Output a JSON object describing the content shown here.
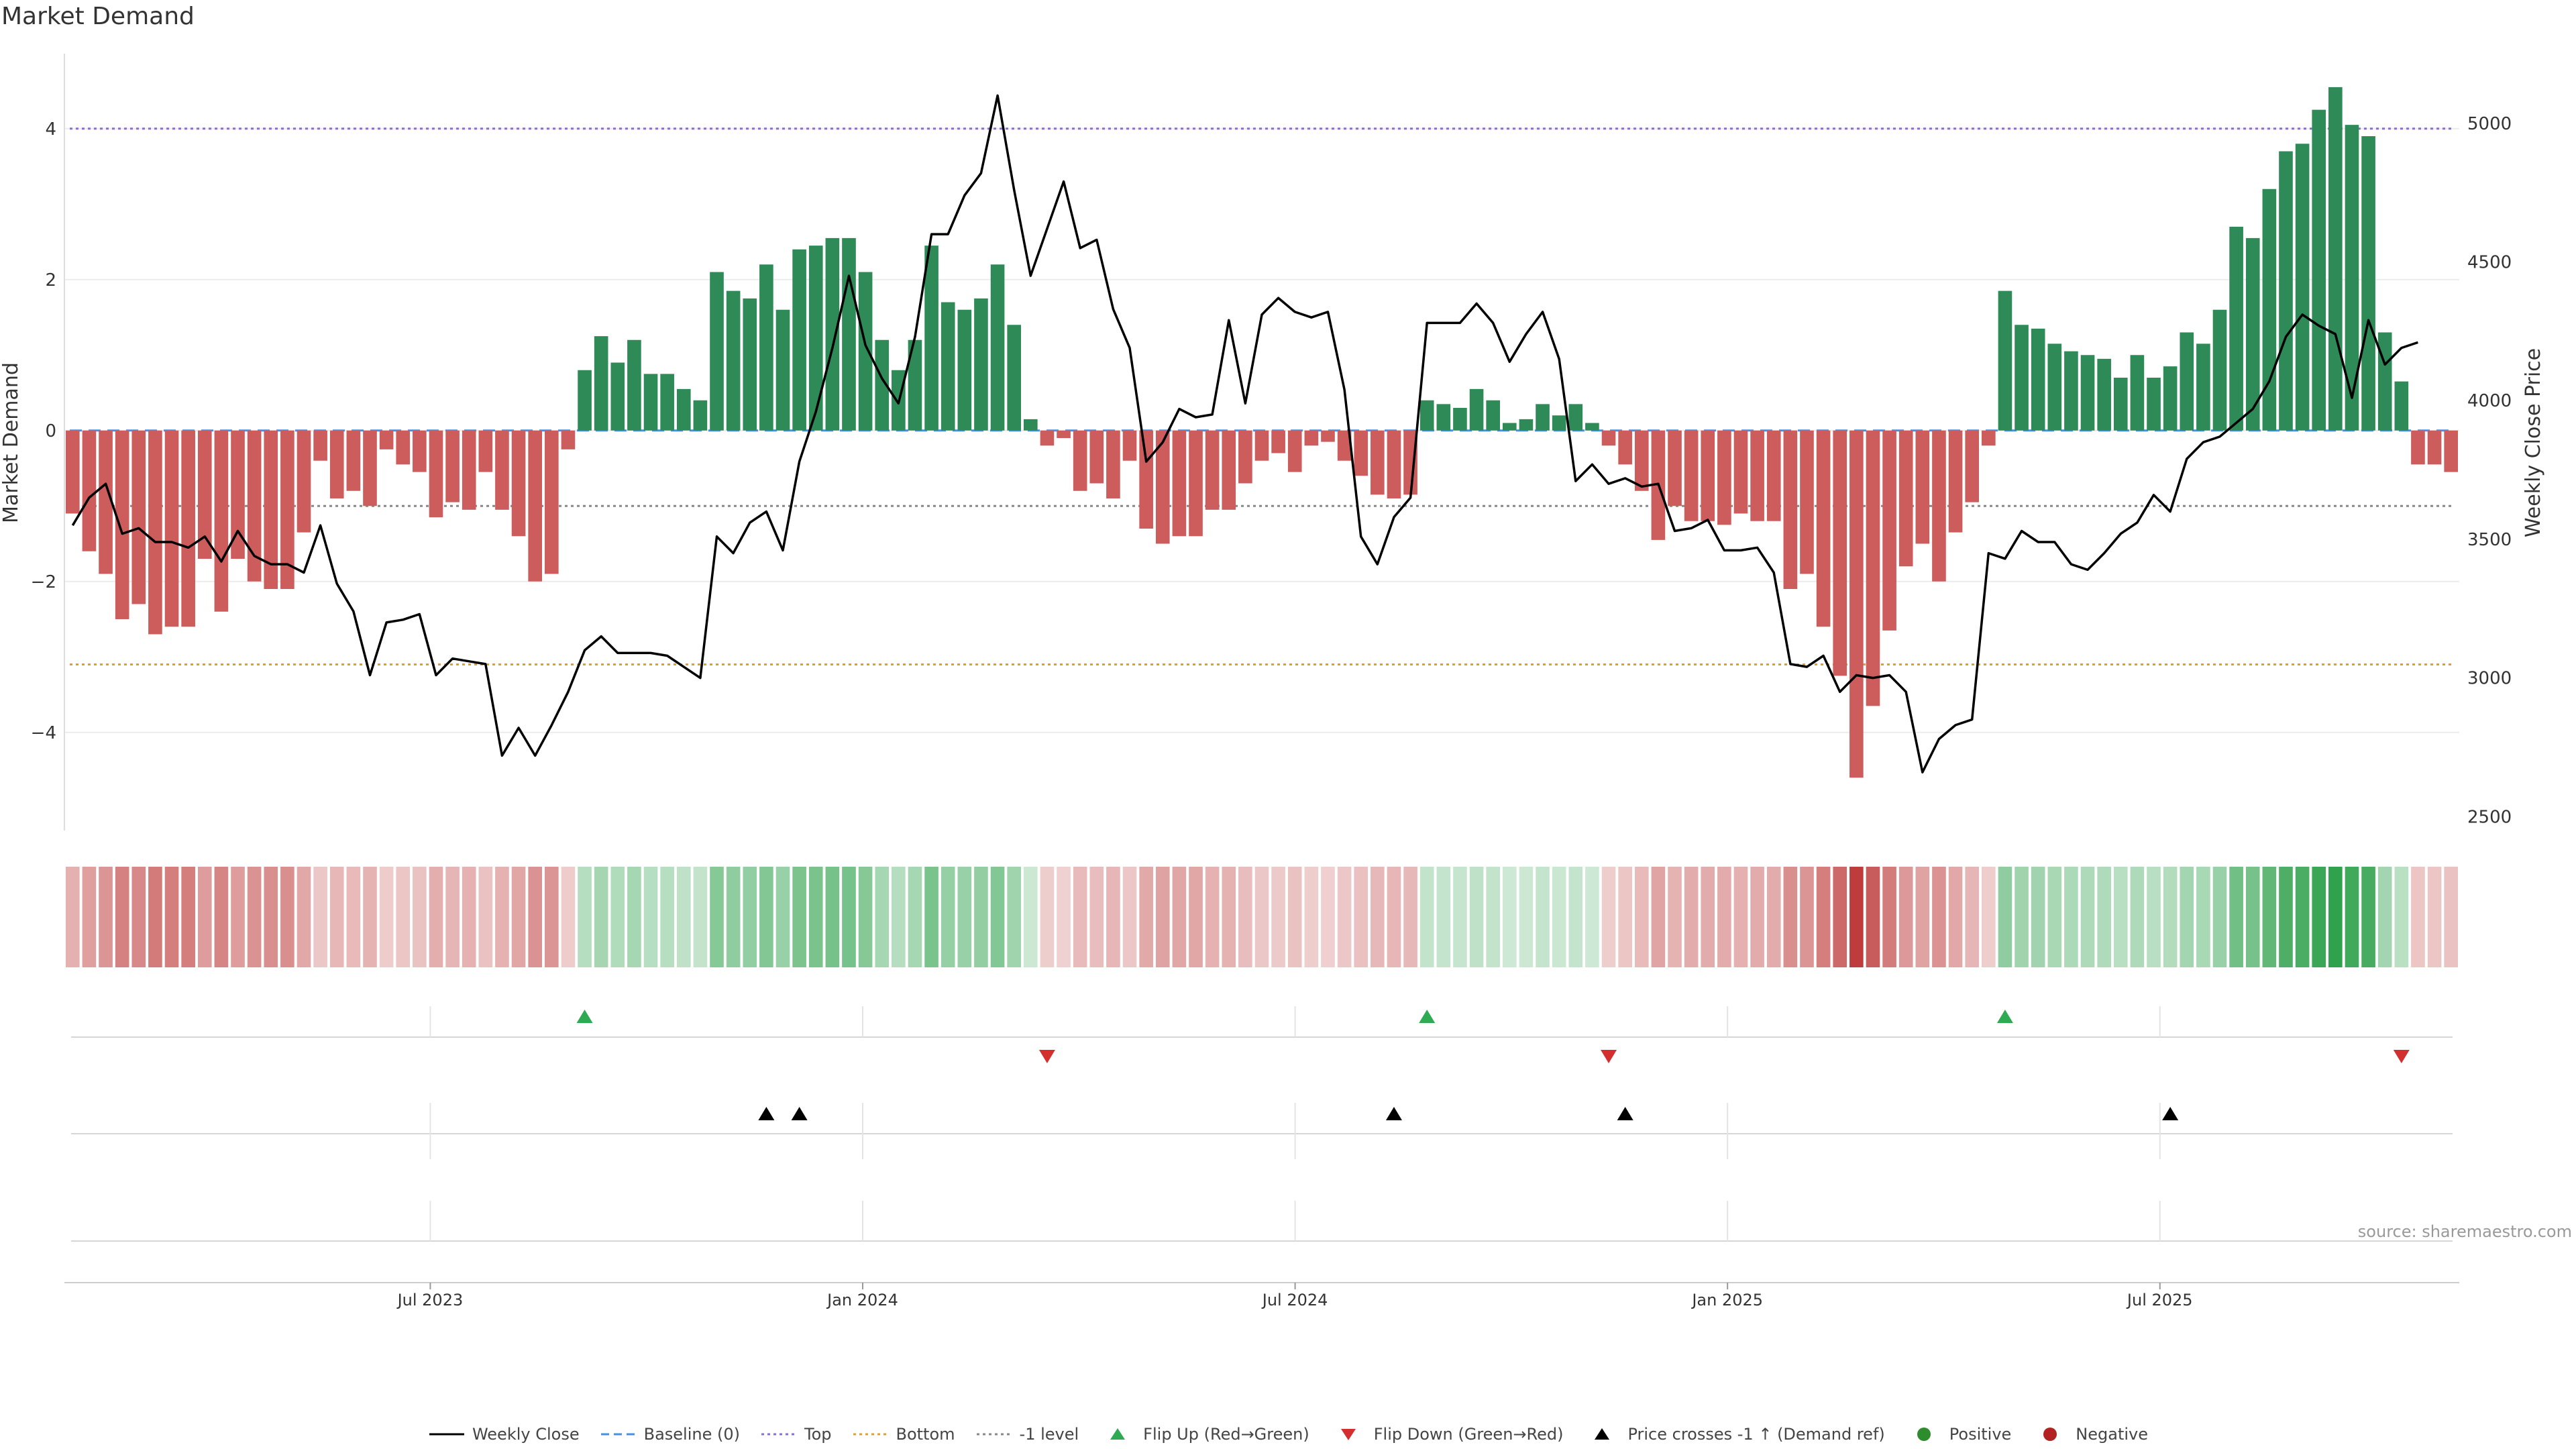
{
  "title": "Market Demand",
  "source": "source: sharemaestro.com",
  "colors": {
    "positive": "#2e8b57",
    "negative": "#cd5c5c",
    "price": "#000000",
    "top_line": "#8b6fd0",
    "bottom_line": "#e0a030",
    "minus1_line": "#888888",
    "baseline": "#4a90e2",
    "flip_up": "#2eaa52",
    "flip_down": "#d32f2f",
    "price_cross": "#000000",
    "grid": "#ececec"
  },
  "chart_data": {
    "type": "bar+line",
    "title": "Market Demand",
    "ylabel_left": "Market Demand",
    "ylabel_right": "Weekly Close Price",
    "ylim_left": [
      -5.3,
      5.1
    ],
    "yticks_left": [
      -4,
      -2,
      0,
      2,
      4
    ],
    "ytick_labels_left": [
      "−4",
      "−2",
      "0",
      "2",
      "4"
    ],
    "ylim_right": [
      2450,
      5280
    ],
    "yticks_right": [
      2500,
      3000,
      3500,
      4000,
      4500,
      5000
    ],
    "ytick_labels_right": [
      "2500",
      "3000",
      "3500",
      "4000",
      "4500",
      "5000"
    ],
    "reference_lines": {
      "top": 4.0,
      "bottom": -3.1,
      "minus_one": -1.0,
      "baseline": 0
    },
    "xlim_weeks": [
      0,
      144
    ],
    "x_ticks": [
      {
        "label": "Jul 2023",
        "week": 22
      },
      {
        "label": "Jan 2024",
        "week": 48
      },
      {
        "label": "Jul 2024",
        "week": 74
      },
      {
        "label": "Jan 2025",
        "week": 100
      },
      {
        "label": "Jul 2025",
        "week": 126
      }
    ],
    "demand": [
      -1.1,
      -1.6,
      -1.9,
      -2.5,
      -2.3,
      -2.7,
      -2.6,
      -2.6,
      -1.7,
      -2.4,
      -1.7,
      -2.0,
      -2.1,
      -2.1,
      -1.35,
      -0.4,
      -0.9,
      -0.8,
      -1.0,
      -0.25,
      -0.45,
      -0.55,
      -1.15,
      -0.95,
      -1.05,
      -0.55,
      -1.05,
      -1.4,
      -2.0,
      -1.9,
      -0.25,
      0.8,
      1.25,
      0.9,
      1.2,
      0.75,
      0.75,
      0.55,
      0.4,
      2.1,
      1.85,
      1.75,
      2.2,
      1.6,
      2.4,
      2.45,
      2.55,
      2.55,
      2.1,
      1.2,
      0.8,
      1.2,
      2.45,
      1.7,
      1.6,
      1.75,
      2.2,
      1.4,
      0.15,
      -0.2,
      -0.1,
      -0.8,
      -0.7,
      -0.9,
      -0.4,
      -1.3,
      -1.5,
      -1.4,
      -1.4,
      -1.05,
      -1.05,
      -0.7,
      -0.4,
      -0.3,
      -0.55,
      -0.2,
      -0.15,
      -0.4,
      -0.6,
      -0.85,
      -0.9,
      -0.85,
      0.4,
      0.35,
      0.3,
      0.55,
      0.4,
      0.1,
      0.15,
      0.35,
      0.2,
      0.35,
      0.1,
      -0.2,
      -0.45,
      -0.8,
      -1.45,
      -1.0,
      -1.2,
      -1.2,
      -1.25,
      -1.1,
      -1.2,
      -1.2,
      -2.1,
      -1.9,
      -2.6,
      -3.25,
      -4.6,
      -3.65,
      -2.65,
      -1.8,
      -1.5,
      -2.0,
      -1.35,
      -0.95,
      -0.2,
      1.85,
      1.4,
      1.35,
      1.15,
      1.05,
      1.0,
      0.95,
      0.7,
      1.0,
      0.7,
      0.85,
      1.3,
      1.15,
      1.6,
      2.7,
      2.55,
      3.2,
      3.7,
      3.8,
      4.25,
      4.55,
      4.05,
      3.9,
      1.3,
      0.65,
      -0.45,
      -0.45,
      -0.55
    ],
    "weekly_close": [
      3550,
      3650,
      3700,
      3520,
      3540,
      3490,
      3490,
      3470,
      3510,
      3420,
      3530,
      3440,
      3410,
      3410,
      3380,
      3550,
      3340,
      3240,
      3010,
      3200,
      3210,
      3230,
      3010,
      3070,
      3060,
      3050,
      2720,
      2820,
      2720,
      2830,
      2950,
      3100,
      3150,
      3090,
      3090,
      3090,
      3080,
      3040,
      3000,
      3510,
      3450,
      3560,
      3600,
      3460,
      3780,
      3960,
      4190,
      4450,
      4200,
      4080,
      3990,
      4230,
      4600,
      4600,
      4740,
      4820,
      5100,
      4760,
      4450,
      4620,
      4790,
      4550,
      4580,
      4330,
      4190,
      3780,
      3850,
      3970,
      3940,
      3950,
      4290,
      3990,
      4310,
      4370,
      4320,
      4300,
      4320,
      4040,
      3510,
      3410,
      3580,
      3650,
      4280,
      4280,
      4280,
      4350,
      4280,
      4140,
      4240,
      4320,
      4150,
      3710,
      3770,
      3700,
      3720,
      3690,
      3700,
      3530,
      3540,
      3570,
      3460,
      3460,
      3470,
      3380,
      3050,
      3040,
      3080,
      2950,
      3010,
      3000,
      3010,
      2950,
      2660,
      2780,
      2830,
      2850,
      3450,
      3430,
      3530,
      3490,
      3490,
      3410,
      3390,
      3450,
      3520,
      3560,
      3660,
      3600,
      3790,
      3850,
      3870,
      3920,
      3970,
      4070,
      4230,
      4310,
      4270,
      4240,
      4010,
      4290,
      4130,
      4190,
      4210
    ],
    "heat_values": [
      -1.1,
      -1.6,
      -1.9,
      -2.5,
      -2.3,
      -2.7,
      -2.6,
      -2.6,
      -1.7,
      -2.4,
      -1.7,
      -2.0,
      -2.1,
      -2.1,
      -1.35,
      -0.4,
      -0.9,
      -0.8,
      -1.0,
      -0.25,
      -0.45,
      -0.55,
      -1.15,
      -0.95,
      -1.05,
      -0.55,
      -1.05,
      -1.4,
      -2.0,
      -1.9,
      -0.25,
      0.8,
      1.25,
      0.9,
      1.2,
      0.75,
      0.75,
      0.55,
      0.4,
      2.1,
      1.85,
      1.75,
      2.2,
      1.6,
      2.4,
      2.45,
      2.55,
      2.55,
      2.1,
      1.2,
      0.8,
      1.2,
      2.45,
      1.7,
      1.6,
      1.75,
      2.2,
      1.4,
      0.15,
      -0.2,
      -0.1,
      -0.8,
      -0.7,
      -0.9,
      -0.4,
      -1.3,
      -1.5,
      -1.4,
      -1.4,
      -1.05,
      -1.05,
      -0.7,
      -0.4,
      -0.3,
      -0.55,
      -0.2,
      -0.15,
      -0.4,
      -0.6,
      -0.85,
      -0.9,
      -0.85,
      0.4,
      0.35,
      0.3,
      0.55,
      0.4,
      0.1,
      0.15,
      0.35,
      0.2,
      0.35,
      0.1,
      -0.2,
      -0.45,
      -0.8,
      -1.45,
      -1.0,
      -1.2,
      -1.2,
      -1.25,
      -1.1,
      -1.2,
      -1.2,
      -2.1,
      -1.9,
      -2.6,
      -3.25,
      -4.6,
      -3.65,
      -2.65,
      -1.8,
      -1.5,
      -2.0,
      -1.35,
      -0.95,
      -0.2,
      1.85,
      1.4,
      1.35,
      1.15,
      1.05,
      1.0,
      0.95,
      0.7,
      1.0,
      0.7,
      0.85,
      1.3,
      1.15,
      1.6,
      2.7,
      2.55,
      3.2,
      3.7,
      3.8,
      4.25,
      4.55,
      4.05,
      3.9,
      1.3,
      0.65,
      -0.45,
      -0.45,
      -0.55
    ],
    "flip_up_weeks": [
      31,
      82,
      117
    ],
    "flip_down_weeks": [
      59,
      93,
      141
    ],
    "price_cross_weeks": [
      42,
      44,
      80,
      94,
      127
    ],
    "legend": [
      {
        "label": "Weekly Close",
        "kind": "line-solid",
        "color": "#000000"
      },
      {
        "label": "Baseline (0)",
        "kind": "line-dashed",
        "color": "#4a90e2"
      },
      {
        "label": "Top",
        "kind": "line-dotted",
        "color": "#8b6fd0"
      },
      {
        "label": "Bottom",
        "kind": "line-dotted",
        "color": "#e0a030"
      },
      {
        "label": "-1 level",
        "kind": "line-dotted",
        "color": "#888888"
      },
      {
        "label": "Flip Up (Red→Green)",
        "kind": "tri-up",
        "color": "#2eaa52"
      },
      {
        "label": "Flip Down (Green→Red)",
        "kind": "tri-down",
        "color": "#d32f2f"
      },
      {
        "label": "Price crosses -1 ↑ (Demand ref)",
        "kind": "tri-up",
        "color": "#000000"
      },
      {
        "label": "Positive",
        "kind": "dot",
        "color": "#2e8b2e"
      },
      {
        "label": "Negative",
        "kind": "dot",
        "color": "#b22222"
      }
    ]
  }
}
